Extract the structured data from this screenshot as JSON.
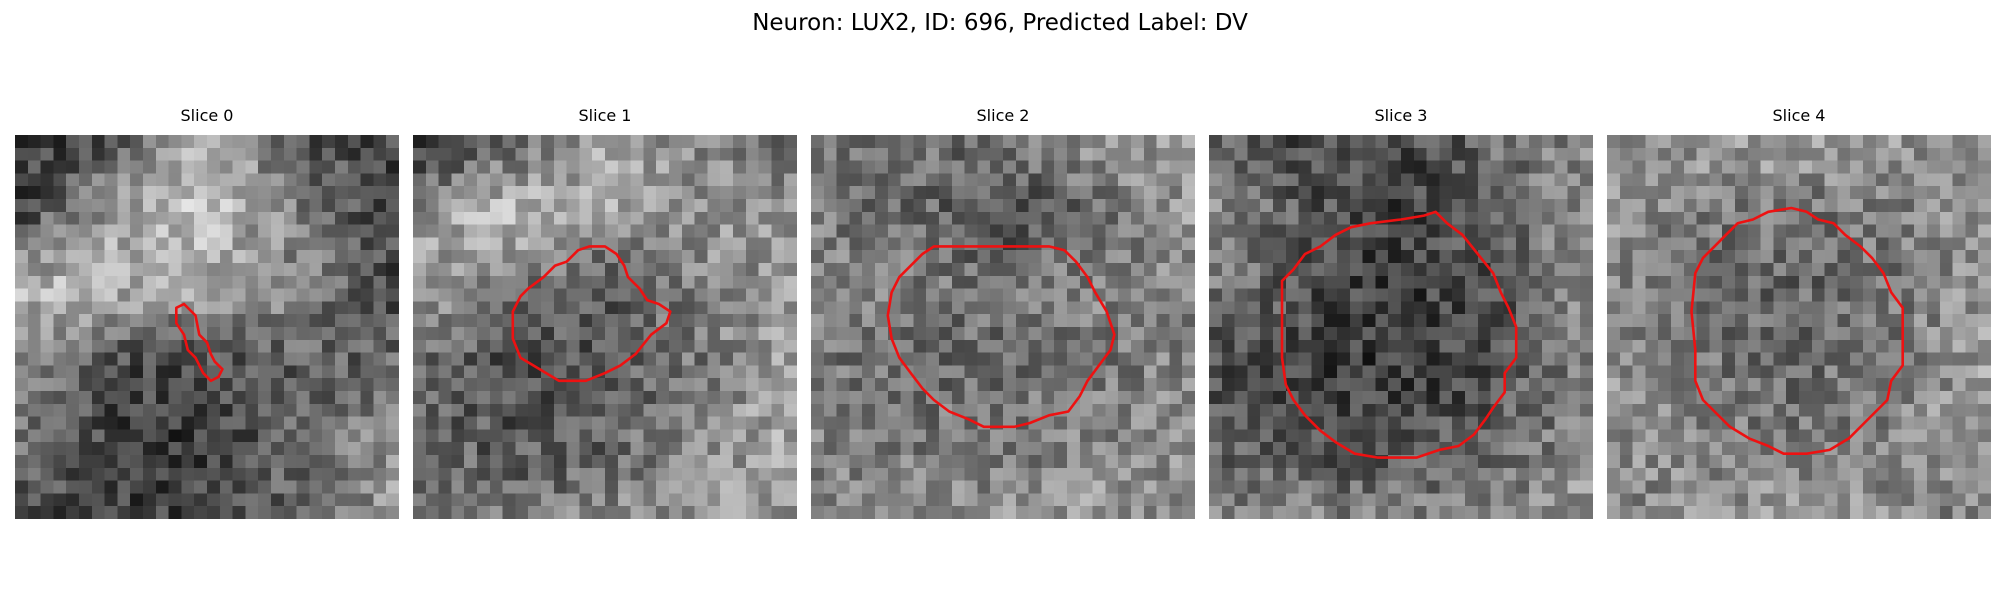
{
  "title": "Neuron: LUX2, ID: 696, Predicted Label: DV",
  "contour_color": "#ee1111",
  "colormap": "gray",
  "slices": [
    {
      "label": "Slice 0",
      "seed": 11,
      "background": [
        [
          0.18,
          0.3,
          0.72,
          0.32,
          0.28
        ],
        [
          0.25,
          0.62,
          0.78,
          0.46,
          0.26
        ],
        [
          0.72,
          0.7,
          0.64,
          0.52,
          0.3
        ],
        [
          0.52,
          0.28,
          0.28,
          0.36,
          0.4
        ],
        [
          0.48,
          0.24,
          0.22,
          0.44,
          0.58
        ],
        [
          0.3,
          0.24,
          0.3,
          0.4,
          0.6
        ]
      ],
      "contour": [
        [
          0.42,
          0.45
        ],
        [
          0.44,
          0.44
        ],
        [
          0.47,
          0.47
        ],
        [
          0.48,
          0.52
        ],
        [
          0.5,
          0.54
        ],
        [
          0.51,
          0.57
        ],
        [
          0.52,
          0.59
        ],
        [
          0.54,
          0.61
        ],
        [
          0.53,
          0.63
        ],
        [
          0.51,
          0.64
        ],
        [
          0.49,
          0.62
        ],
        [
          0.47,
          0.58
        ],
        [
          0.45,
          0.56
        ],
        [
          0.44,
          0.52
        ],
        [
          0.42,
          0.49
        ]
      ]
    },
    {
      "label": "Slice 1",
      "seed": 23,
      "background": [
        [
          0.16,
          0.34,
          0.66,
          0.52,
          0.4
        ],
        [
          0.56,
          0.76,
          0.64,
          0.58,
          0.62
        ],
        [
          0.66,
          0.48,
          0.34,
          0.52,
          0.6
        ],
        [
          0.4,
          0.3,
          0.34,
          0.46,
          0.66
        ],
        [
          0.42,
          0.34,
          0.38,
          0.56,
          0.66
        ],
        [
          0.5,
          0.46,
          0.54,
          0.6,
          0.58
        ]
      ],
      "contour": [
        [
          0.3,
          0.4
        ],
        [
          0.34,
          0.37
        ],
        [
          0.37,
          0.34
        ],
        [
          0.4,
          0.33
        ],
        [
          0.43,
          0.3
        ],
        [
          0.46,
          0.29
        ],
        [
          0.5,
          0.29
        ],
        [
          0.53,
          0.31
        ],
        [
          0.55,
          0.34
        ],
        [
          0.56,
          0.37
        ],
        [
          0.59,
          0.4
        ],
        [
          0.61,
          0.43
        ],
        [
          0.64,
          0.44
        ],
        [
          0.67,
          0.46
        ],
        [
          0.66,
          0.49
        ],
        [
          0.62,
          0.52
        ],
        [
          0.58,
          0.57
        ],
        [
          0.54,
          0.6
        ],
        [
          0.5,
          0.62
        ],
        [
          0.45,
          0.64
        ],
        [
          0.38,
          0.64
        ],
        [
          0.33,
          0.61
        ],
        [
          0.28,
          0.58
        ],
        [
          0.26,
          0.53
        ],
        [
          0.26,
          0.46
        ],
        [
          0.28,
          0.42
        ]
      ]
    },
    {
      "label": "Slice 2",
      "seed": 37,
      "background": [
        [
          0.52,
          0.44,
          0.46,
          0.58,
          0.56
        ],
        [
          0.48,
          0.42,
          0.3,
          0.44,
          0.6
        ],
        [
          0.52,
          0.48,
          0.44,
          0.52,
          0.5
        ],
        [
          0.46,
          0.42,
          0.42,
          0.46,
          0.54
        ],
        [
          0.5,
          0.48,
          0.46,
          0.52,
          0.56
        ],
        [
          0.56,
          0.58,
          0.56,
          0.6,
          0.52
        ]
      ],
      "contour": [
        [
          0.21,
          0.41
        ],
        [
          0.23,
          0.37
        ],
        [
          0.26,
          0.34
        ],
        [
          0.29,
          0.31
        ],
        [
          0.32,
          0.29
        ],
        [
          0.4,
          0.29
        ],
        [
          0.5,
          0.29
        ],
        [
          0.62,
          0.29
        ],
        [
          0.66,
          0.3
        ],
        [
          0.69,
          0.33
        ],
        [
          0.72,
          0.37
        ],
        [
          0.74,
          0.41
        ],
        [
          0.77,
          0.46
        ],
        [
          0.79,
          0.52
        ],
        [
          0.78,
          0.56
        ],
        [
          0.75,
          0.6
        ],
        [
          0.72,
          0.64
        ],
        [
          0.7,
          0.68
        ],
        [
          0.67,
          0.72
        ],
        [
          0.62,
          0.73
        ],
        [
          0.57,
          0.75
        ],
        [
          0.53,
          0.76
        ],
        [
          0.45,
          0.76
        ],
        [
          0.41,
          0.74
        ],
        [
          0.36,
          0.72
        ],
        [
          0.32,
          0.69
        ],
        [
          0.29,
          0.66
        ],
        [
          0.26,
          0.62
        ],
        [
          0.23,
          0.58
        ],
        [
          0.21,
          0.53
        ],
        [
          0.2,
          0.47
        ]
      ]
    },
    {
      "label": "Slice 3",
      "seed": 41,
      "background": [
        [
          0.34,
          0.3,
          0.26,
          0.44,
          0.52
        ],
        [
          0.56,
          0.34,
          0.24,
          0.4,
          0.56
        ],
        [
          0.48,
          0.32,
          0.22,
          0.32,
          0.58
        ],
        [
          0.32,
          0.24,
          0.22,
          0.3,
          0.5
        ],
        [
          0.36,
          0.3,
          0.3,
          0.4,
          0.54
        ],
        [
          0.5,
          0.52,
          0.5,
          0.56,
          0.6
        ]
      ],
      "contour": [
        [
          0.19,
          0.38
        ],
        [
          0.22,
          0.35
        ],
        [
          0.25,
          0.31
        ],
        [
          0.29,
          0.29
        ],
        [
          0.33,
          0.26
        ],
        [
          0.37,
          0.24
        ],
        [
          0.42,
          0.23
        ],
        [
          0.5,
          0.22
        ],
        [
          0.56,
          0.21
        ],
        [
          0.59,
          0.2
        ],
        [
          0.62,
          0.23
        ],
        [
          0.66,
          0.26
        ],
        [
          0.7,
          0.31
        ],
        [
          0.74,
          0.36
        ],
        [
          0.76,
          0.41
        ],
        [
          0.78,
          0.45
        ],
        [
          0.8,
          0.5
        ],
        [
          0.8,
          0.58
        ],
        [
          0.77,
          0.62
        ],
        [
          0.77,
          0.67
        ],
        [
          0.74,
          0.71
        ],
        [
          0.72,
          0.74
        ],
        [
          0.69,
          0.78
        ],
        [
          0.65,
          0.81
        ],
        [
          0.6,
          0.82
        ],
        [
          0.54,
          0.84
        ],
        [
          0.44,
          0.84
        ],
        [
          0.38,
          0.83
        ],
        [
          0.33,
          0.8
        ],
        [
          0.29,
          0.77
        ],
        [
          0.25,
          0.73
        ],
        [
          0.22,
          0.69
        ],
        [
          0.2,
          0.65
        ],
        [
          0.19,
          0.58
        ],
        [
          0.19,
          0.48
        ]
      ]
    },
    {
      "label": "Slice 4",
      "seed": 53,
      "background": [
        [
          0.56,
          0.62,
          0.66,
          0.6,
          0.52
        ],
        [
          0.62,
          0.48,
          0.44,
          0.5,
          0.58
        ],
        [
          0.52,
          0.44,
          0.4,
          0.46,
          0.6
        ],
        [
          0.56,
          0.46,
          0.42,
          0.48,
          0.62
        ],
        [
          0.58,
          0.5,
          0.46,
          0.54,
          0.64
        ],
        [
          0.5,
          0.58,
          0.62,
          0.54,
          0.5
        ]
      ],
      "contour": [
        [
          0.23,
          0.36
        ],
        [
          0.25,
          0.32
        ],
        [
          0.28,
          0.29
        ],
        [
          0.31,
          0.26
        ],
        [
          0.34,
          0.23
        ],
        [
          0.38,
          0.22
        ],
        [
          0.42,
          0.2
        ],
        [
          0.48,
          0.19
        ],
        [
          0.52,
          0.2
        ],
        [
          0.55,
          0.22
        ],
        [
          0.59,
          0.23
        ],
        [
          0.62,
          0.26
        ],
        [
          0.66,
          0.29
        ],
        [
          0.69,
          0.32
        ],
        [
          0.72,
          0.36
        ],
        [
          0.74,
          0.41
        ],
        [
          0.77,
          0.45
        ],
        [
          0.77,
          0.52
        ],
        [
          0.77,
          0.6
        ],
        [
          0.74,
          0.64
        ],
        [
          0.73,
          0.69
        ],
        [
          0.7,
          0.72
        ],
        [
          0.67,
          0.75
        ],
        [
          0.63,
          0.79
        ],
        [
          0.58,
          0.82
        ],
        [
          0.52,
          0.83
        ],
        [
          0.46,
          0.83
        ],
        [
          0.42,
          0.81
        ],
        [
          0.37,
          0.79
        ],
        [
          0.32,
          0.76
        ],
        [
          0.28,
          0.72
        ],
        [
          0.25,
          0.69
        ],
        [
          0.23,
          0.64
        ],
        [
          0.23,
          0.56
        ],
        [
          0.22,
          0.46
        ]
      ]
    }
  ]
}
